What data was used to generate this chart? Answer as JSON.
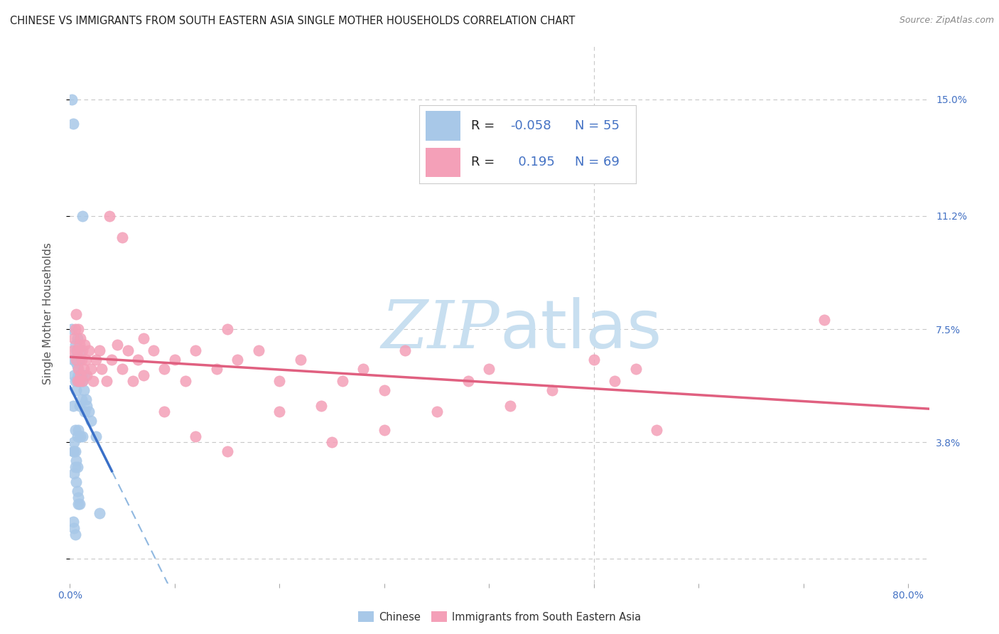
{
  "title": "CHINESE VS IMMIGRANTS FROM SOUTH EASTERN ASIA SINGLE MOTHER HOUSEHOLDS CORRELATION CHART",
  "source": "Source: ZipAtlas.com",
  "ylabel": "Single Mother Households",
  "color_chinese": "#a8c8e8",
  "color_sea": "#f4a0b8",
  "color_line_chinese": "#3a70c8",
  "color_line_sea": "#e06080",
  "color_line_chinese_dash": "#90b8e0",
  "watermark_color": "#c8dff0",
  "grid_color": "#c8c8c8",
  "right_tick_color": "#4472c4",
  "chinese_x": [
    0.002,
    0.003,
    0.003,
    0.004,
    0.004,
    0.005,
    0.005,
    0.005,
    0.006,
    0.006,
    0.006,
    0.007,
    0.007,
    0.007,
    0.007,
    0.008,
    0.008,
    0.008,
    0.009,
    0.009,
    0.009,
    0.01,
    0.01,
    0.01,
    0.011,
    0.011,
    0.012,
    0.012,
    0.013,
    0.014,
    0.014,
    0.015,
    0.016,
    0.018,
    0.02,
    0.025,
    0.002,
    0.003,
    0.004,
    0.005,
    0.006,
    0.007,
    0.008,
    0.003,
    0.004,
    0.005,
    0.006,
    0.007,
    0.008,
    0.009,
    0.003,
    0.004,
    0.005,
    0.028,
    0.012
  ],
  "chinese_y": [
    0.15,
    0.142,
    0.065,
    0.06,
    0.035,
    0.058,
    0.07,
    0.042,
    0.064,
    0.068,
    0.055,
    0.063,
    0.058,
    0.072,
    0.04,
    0.065,
    0.06,
    0.042,
    0.065,
    0.058,
    0.05,
    0.068,
    0.058,
    0.04,
    0.06,
    0.052,
    0.058,
    0.04,
    0.055,
    0.06,
    0.048,
    0.052,
    0.05,
    0.048,
    0.045,
    0.04,
    0.075,
    0.035,
    0.028,
    0.03,
    0.025,
    0.022,
    0.018,
    0.05,
    0.038,
    0.035,
    0.032,
    0.03,
    0.02,
    0.018,
    0.012,
    0.01,
    0.008,
    0.015,
    0.112
  ],
  "sea_x": [
    0.003,
    0.004,
    0.005,
    0.006,
    0.006,
    0.007,
    0.007,
    0.008,
    0.008,
    0.009,
    0.009,
    0.01,
    0.01,
    0.011,
    0.012,
    0.012,
    0.013,
    0.014,
    0.015,
    0.016,
    0.018,
    0.02,
    0.022,
    0.025,
    0.028,
    0.03,
    0.035,
    0.04,
    0.045,
    0.05,
    0.055,
    0.06,
    0.065,
    0.07,
    0.08,
    0.09,
    0.1,
    0.11,
    0.12,
    0.14,
    0.15,
    0.16,
    0.18,
    0.2,
    0.22,
    0.24,
    0.26,
    0.28,
    0.3,
    0.32,
    0.35,
    0.38,
    0.4,
    0.42,
    0.46,
    0.5,
    0.52,
    0.54,
    0.56,
    0.72,
    0.038,
    0.05,
    0.07,
    0.09,
    0.12,
    0.15,
    0.2,
    0.25,
    0.3
  ],
  "sea_y": [
    0.068,
    0.072,
    0.075,
    0.065,
    0.08,
    0.068,
    0.058,
    0.075,
    0.062,
    0.07,
    0.058,
    0.072,
    0.06,
    0.065,
    0.068,
    0.058,
    0.062,
    0.07,
    0.065,
    0.06,
    0.068,
    0.062,
    0.058,
    0.065,
    0.068,
    0.062,
    0.058,
    0.065,
    0.07,
    0.062,
    0.068,
    0.058,
    0.065,
    0.072,
    0.068,
    0.062,
    0.065,
    0.058,
    0.068,
    0.062,
    0.075,
    0.065,
    0.068,
    0.058,
    0.065,
    0.05,
    0.058,
    0.062,
    0.055,
    0.068,
    0.048,
    0.058,
    0.062,
    0.05,
    0.055,
    0.065,
    0.058,
    0.062,
    0.042,
    0.078,
    0.112,
    0.105,
    0.06,
    0.048,
    0.04,
    0.035,
    0.048,
    0.038,
    0.042
  ],
  "xlim": [
    0.0,
    0.82
  ],
  "ylim": [
    -0.008,
    0.168
  ],
  "x_tick_pos": [
    0.0,
    0.1,
    0.2,
    0.3,
    0.4,
    0.5,
    0.6,
    0.7,
    0.8
  ],
  "x_tick_labels": [
    "0.0%",
    "",
    "",
    "",
    "",
    "",
    "",
    "",
    "80.0%"
  ],
  "y_tick_pos": [
    0.0,
    0.038,
    0.075,
    0.112,
    0.15
  ],
  "y_tick_labels_right": [
    "",
    "3.8%",
    "7.5%",
    "11.2%",
    "15.0%"
  ],
  "legend_r1_label": "R = ",
  "legend_r1_val": "-0.058",
  "legend_n1": "N = 55",
  "legend_r2_label": "R = ",
  "legend_r2_val": "  0.195",
  "legend_n2": "N = 69"
}
